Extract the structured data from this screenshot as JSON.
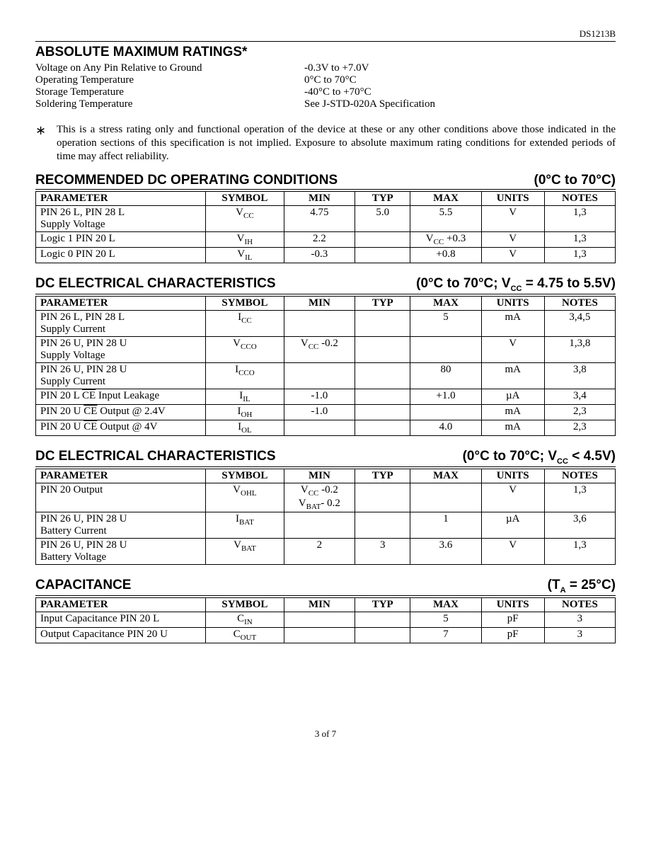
{
  "docId": "DS1213B",
  "pageNumber": "3 of 7",
  "absMax": {
    "heading": "ABSOLUTE MAXIMUM RATINGS*",
    "rows": [
      {
        "label": "Voltage on Any Pin Relative to Ground",
        "value": "-0.3V to +7.0V"
      },
      {
        "label": "Operating Temperature",
        "value": "0°C to 70°C"
      },
      {
        "label": "Storage Temperature",
        "value": "-40°C to +70°C"
      },
      {
        "label": "Soldering Temperature",
        "value": "See J-STD-020A Specification"
      }
    ],
    "footnoteMarker": "∗",
    "footnote": "This is a stress rating only and functional operation of the device at these or any other conditions above those indicated in the operation sections of this specification is not implied. Exposure to absolute maximum rating conditions for extended periods of time may affect reliability."
  },
  "columns": [
    "PARAMETER",
    "SYMBOL",
    "MIN",
    "TYP",
    "MAX",
    "UNITS",
    "NOTES"
  ],
  "tableRecDC": {
    "heading": "RECOMMENDED DC OPERATING CONDITIONS",
    "condition": "(0°C to 70°C)",
    "rows": [
      {
        "param": "PIN 26 L, PIN 28 L\nSupply Voltage",
        "symbol": "V<sub class='sub'>CC</sub>",
        "min": "4.75",
        "typ": "5.0",
        "max": "5.5",
        "units": "V",
        "notes": "1,3"
      },
      {
        "param": "Logic 1 PIN 20 L",
        "symbol": "V<sub class='sub'>IH</sub>",
        "min": "2.2",
        "typ": "",
        "max": "V<sub class='sub'>CC</sub> +0.3",
        "units": "V",
        "notes": "1,3"
      },
      {
        "param": "Logic 0 PIN 20 L",
        "symbol": "V<sub class='sub'>IL</sub>",
        "min": "-0.3",
        "typ": "",
        "max": "+0.8",
        "units": "V",
        "notes": "1,3"
      }
    ]
  },
  "tableDCElec1": {
    "heading": "DC ELECTRICAL CHARACTERISTICS",
    "condition": "(0°C to 70°C; V<sub class='sub'>CC</sub> = 4.75 to 5.5V)",
    "rows": [
      {
        "param": "PIN 26 L, PIN 28 L\nSupply Current",
        "symbol": "I<sub class='sub'>CC</sub>",
        "min": "",
        "typ": "",
        "max": "5",
        "units": "mA",
        "notes": "3,4,5"
      },
      {
        "param": "PIN 26 U, PIN 28 U\nSupply Voltage",
        "symbol": "V<sub class='sub'>CCO</sub>",
        "min": "V<sub class='sub'>CC</sub> -0.2",
        "typ": "",
        "max": "",
        "units": "V",
        "notes": "1,3,8"
      },
      {
        "param": "PIN 26 U, PIN 28 U\nSupply Current",
        "symbol": "I<sub class='sub'>CCO</sub>",
        "min": "",
        "typ": "",
        "max": "80",
        "units": "mA",
        "notes": "3,8"
      },
      {
        "param": "PIN 20 L  <span class='ovl'>CE</span>  Input Leakage",
        "symbol": "I<sub class='sub'>IL</sub>",
        "min": "-1.0",
        "typ": "",
        "max": "+1.0",
        "units": "µA",
        "notes": "3,4"
      },
      {
        "param": "PIN 20 U  <span class='ovl'>CE</span>  Output @ 2.4V",
        "symbol": "I<sub class='sub'>OH</sub>",
        "min": "-1.0",
        "typ": "",
        "max": "",
        "units": "mA",
        "notes": "2,3"
      },
      {
        "param": "PIN 20 U  <span class='ovl'>CE</span>  Output @ 4V",
        "symbol": "I<sub class='sub'>OL</sub>",
        "min": "",
        "typ": "",
        "max": "4.0",
        "units": "mA",
        "notes": "2,3"
      }
    ]
  },
  "tableDCElec2": {
    "heading": "DC ELECTRICAL CHARACTERISTICS",
    "condition": "(0°C to 70°C; V<sub class='sub'>CC</sub> < 4.5V)",
    "rows": [
      {
        "param": "PIN 20 Output",
        "symbol": "V<sub class='sub'>OHL</sub>",
        "min": "V<sub class='sub'>CC</sub> -0.2<br>V<sub class='sub'>BAT</sub>- 0.2",
        "typ": "",
        "max": "",
        "units": "V",
        "notes": "1,3"
      },
      {
        "param": "PIN 26 U, PIN 28 U\nBattery Current",
        "symbol": "I<sub class='sub'>BAT</sub>",
        "min": "",
        "typ": "",
        "max": "1",
        "units": "µA",
        "notes": "3,6"
      },
      {
        "param": "PIN 26 U, PIN 28 U\nBattery Voltage",
        "symbol": "V<sub class='sub'>BAT</sub>",
        "min": "2",
        "typ": "3",
        "max": "3.6",
        "units": "V",
        "notes": "1,3"
      }
    ]
  },
  "tableCap": {
    "heading": "CAPACITANCE",
    "condition": "(T<sub class='sub'>A</sub> = 25°C)",
    "rows": [
      {
        "param": "Input Capacitance PIN 20 L",
        "symbol": "C<sub class='sub'>IN</sub>",
        "min": "",
        "typ": "",
        "max": "5",
        "units": "pF",
        "notes": "3"
      },
      {
        "param": "Output Capacitance PIN 20 U",
        "symbol": "C<sub class='sub'>OUT</sub>",
        "min": "",
        "typ": "",
        "max": "7",
        "units": "pF",
        "notes": "3"
      }
    ]
  }
}
